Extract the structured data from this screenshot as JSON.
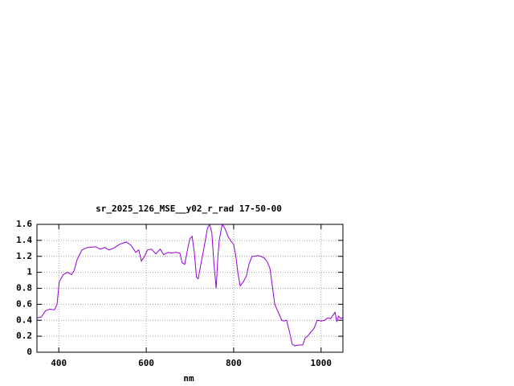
{
  "chart_data": {
    "type": "line",
    "title": "sr_2025_126_MSE__y02_r_rad 17-50-00",
    "x_label": "nm",
    "xlim": [
      350,
      1050
    ],
    "ylim": [
      0,
      1.6
    ],
    "xticks": [
      400,
      600,
      800,
      1000
    ],
    "yticks": [
      0,
      0.2,
      0.4,
      0.6,
      0.8,
      1,
      1.2,
      1.4,
      1.6
    ],
    "grid": true,
    "x": [
      350,
      360,
      370,
      380,
      390,
      396,
      401,
      410,
      420,
      429,
      435,
      442,
      453,
      465,
      484,
      495,
      505,
      515,
      525,
      539,
      554,
      565,
      576,
      583,
      589,
      596,
      603,
      612,
      622,
      632,
      640,
      650,
      658,
      668,
      677,
      682,
      688,
      695,
      700,
      705,
      710,
      715,
      719,
      725,
      732,
      740,
      745,
      750,
      755,
      760,
      764,
      767,
      772,
      774,
      780,
      787,
      795,
      800,
      805,
      810,
      815,
      822,
      829,
      835,
      842,
      848,
      855,
      862,
      870,
      877,
      883,
      888,
      894,
      902,
      910,
      915,
      921,
      928,
      934,
      940,
      948,
      958,
      964,
      969,
      976,
      984,
      991,
      1000,
      1008,
      1015,
      1022,
      1028,
      1032,
      1036,
      1040,
      1046,
      1050
    ],
    "series": [
      {
        "name": "sr_2025_126_MSE__y02_r_rad",
        "color": "#9400d3",
        "values": [
          0.43,
          0.44,
          0.52,
          0.54,
          0.53,
          0.6,
          0.88,
          0.97,
          1.0,
          0.97,
          1.02,
          1.16,
          1.28,
          1.31,
          1.32,
          1.29,
          1.31,
          1.28,
          1.3,
          1.35,
          1.38,
          1.34,
          1.25,
          1.28,
          1.14,
          1.2,
          1.28,
          1.29,
          1.23,
          1.29,
          1.22,
          1.25,
          1.24,
          1.25,
          1.24,
          1.12,
          1.1,
          1.3,
          1.42,
          1.45,
          1.25,
          0.94,
          0.92,
          1.1,
          1.3,
          1.55,
          1.6,
          1.5,
          1.1,
          0.8,
          1.2,
          1.4,
          1.55,
          1.6,
          1.55,
          1.45,
          1.38,
          1.35,
          1.2,
          0.98,
          0.83,
          0.88,
          0.95,
          1.1,
          1.2,
          1.2,
          1.21,
          1.2,
          1.18,
          1.13,
          1.05,
          0.85,
          0.6,
          0.5,
          0.4,
          0.39,
          0.4,
          0.25,
          0.1,
          0.08,
          0.09,
          0.09,
          0.18,
          0.2,
          0.25,
          0.3,
          0.4,
          0.39,
          0.4,
          0.43,
          0.42,
          0.47,
          0.5,
          0.38,
          0.45,
          0.42,
          0.44
        ]
      }
    ]
  }
}
